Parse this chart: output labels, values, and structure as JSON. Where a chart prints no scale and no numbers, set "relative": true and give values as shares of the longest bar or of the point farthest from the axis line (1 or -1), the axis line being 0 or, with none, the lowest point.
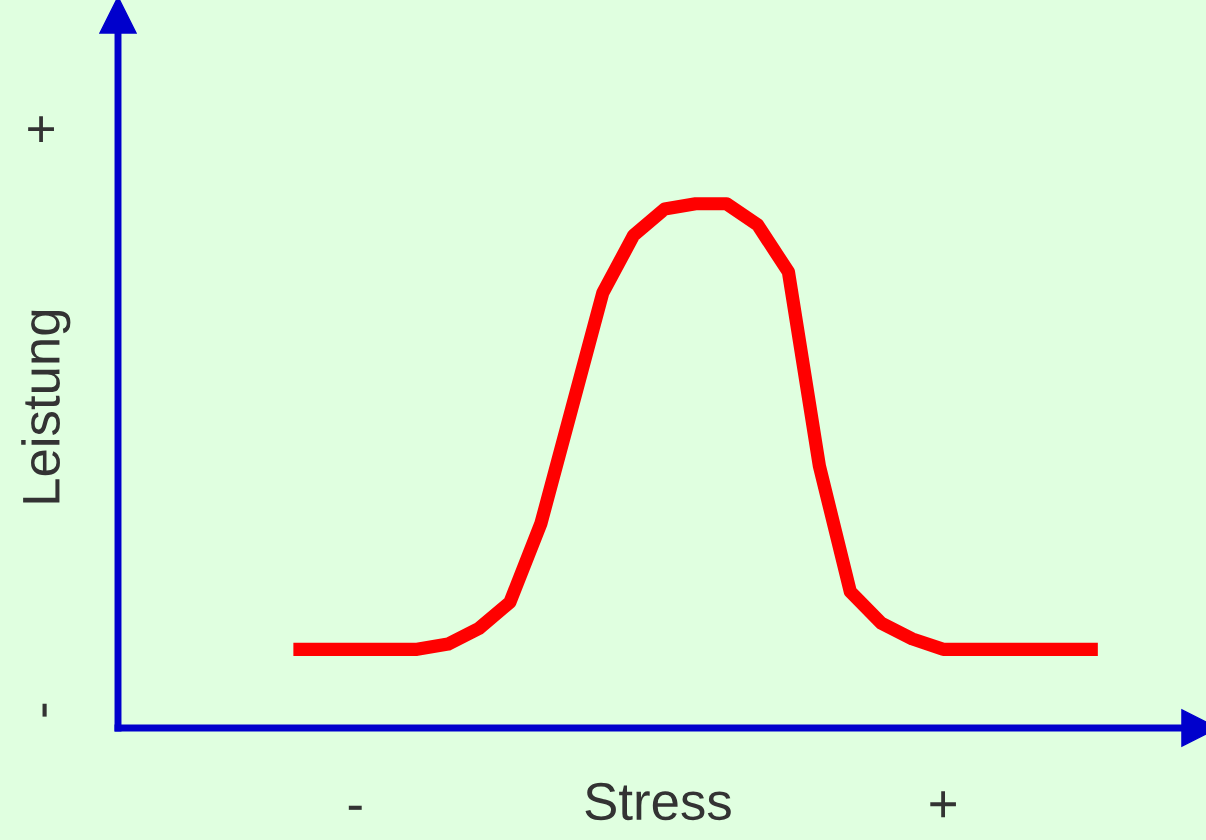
{
  "chart_data": {
    "type": "line",
    "relative": true,
    "xlabel": "Stress",
    "ylabel": "Leistung",
    "categories": [
      null,
      null,
      "-",
      null,
      null,
      null,
      null,
      null,
      null,
      null,
      null,
      null,
      null,
      null,
      null,
      null,
      null,
      null,
      null,
      null,
      null,
      "+",
      null,
      null,
      null,
      null,
      null
    ],
    "annotations": [
      "+",
      "-"
    ],
    "series": [
      {
        "color": "#ff0000",
        "values": [
          0.15,
          0.15,
          0.15,
          0.15,
          0.15,
          0.16,
          0.19,
          0.24,
          0.39,
          0.61,
          0.83,
          0.94,
          0.99,
          1,
          1,
          0.96,
          0.87,
          0.5,
          0.26,
          0.2,
          0.17,
          0.15,
          0.15,
          0.15,
          0.15,
          0.15,
          0.15
        ]
      }
    ],
    "grid": false,
    "legend": false,
    "marker": "none",
    "line_style": "solid"
  }
}
